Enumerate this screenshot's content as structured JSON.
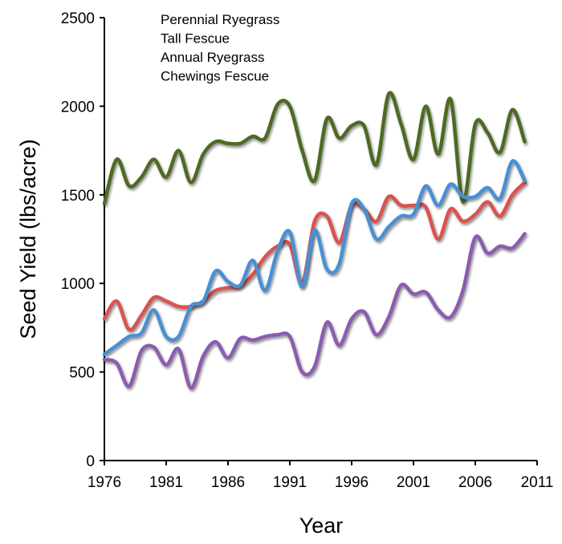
{
  "chart_data": {
    "type": "line",
    "title": "",
    "xlabel": "Year",
    "ylabel": "Seed Yield (lbs/acre)",
    "xlim": [
      1976,
      2011
    ],
    "ylim": [
      0,
      2500
    ],
    "xticks": [
      1976,
      1981,
      1986,
      1991,
      1996,
      2001,
      2006,
      2011
    ],
    "yticks": [
      0,
      500,
      1000,
      1500,
      2000,
      2500
    ],
    "grid": false,
    "legend_position": "top-left",
    "smoothed": true,
    "x": [
      1976,
      1977,
      1978,
      1979,
      1980,
      1981,
      1982,
      1983,
      1984,
      1985,
      1986,
      1987,
      1988,
      1989,
      1990,
      1991,
      1992,
      1993,
      1994,
      1995,
      1996,
      1997,
      1998,
      1999,
      2000,
      2001,
      2002,
      2003,
      2004,
      2005,
      2006,
      2007,
      2008,
      2009,
      2010
    ],
    "series": [
      {
        "name": "Perennial Ryegrass",
        "color": "#d9534f",
        "values": [
          800,
          900,
          740,
          820,
          920,
          900,
          870,
          870,
          900,
          960,
          975,
          985,
          1050,
          1150,
          1210,
          1220,
          1000,
          1350,
          1380,
          1230,
          1440,
          1420,
          1350,
          1490,
          1440,
          1440,
          1430,
          1250,
          1420,
          1350,
          1390,
          1460,
          1380,
          1500,
          1570
        ]
      },
      {
        "name": "Tall Fescue",
        "color": "#4a8fd4",
        "values": [
          600,
          650,
          700,
          720,
          850,
          700,
          700,
          870,
          900,
          1070,
          1010,
          990,
          1130,
          960,
          1180,
          1290,
          980,
          1300,
          1080,
          1110,
          1450,
          1420,
          1250,
          1320,
          1380,
          1390,
          1550,
          1440,
          1560,
          1490,
          1490,
          1540,
          1480,
          1690,
          1580
        ]
      },
      {
        "name": "Annual Ryegrass",
        "color": "#4e6b23",
        "values": [
          1450,
          1700,
          1550,
          1600,
          1700,
          1600,
          1750,
          1570,
          1730,
          1800,
          1790,
          1790,
          1830,
          1820,
          2010,
          2000,
          1750,
          1580,
          1930,
          1820,
          1890,
          1890,
          1670,
          2070,
          1900,
          1700,
          2000,
          1730,
          2040,
          1460,
          1900,
          1850,
          1740,
          1980,
          1800
        ]
      },
      {
        "name": "Chewings Fescue",
        "color": "#8a5db0",
        "values": [
          570,
          550,
          420,
          620,
          640,
          540,
          630,
          410,
          590,
          670,
          580,
          690,
          680,
          700,
          710,
          700,
          500,
          530,
          780,
          650,
          800,
          840,
          710,
          810,
          990,
          940,
          950,
          850,
          810,
          960,
          1260,
          1170,
          1210,
          1200,
          1280
        ]
      }
    ]
  }
}
